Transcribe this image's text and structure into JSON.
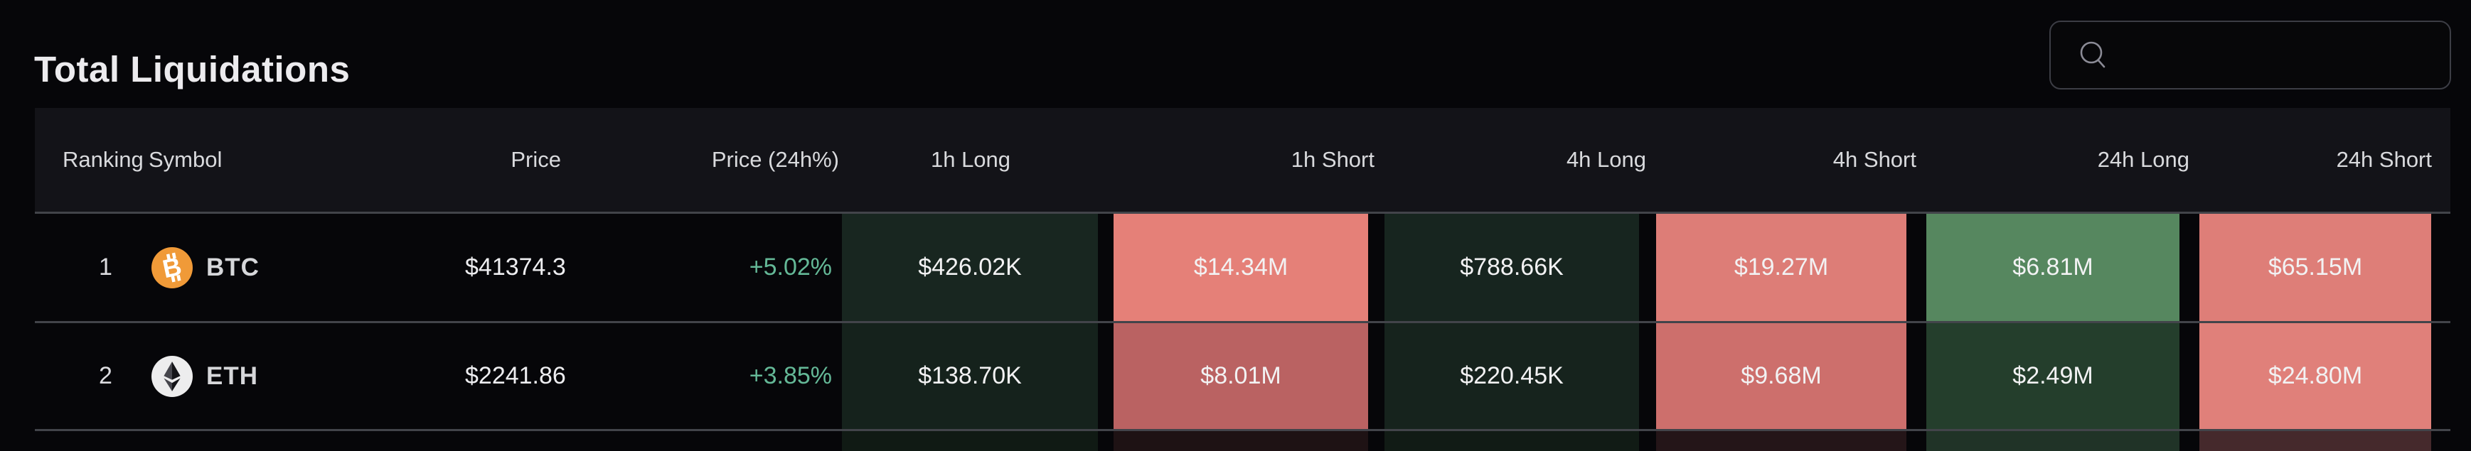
{
  "page": {
    "title": "Total Liquidations"
  },
  "search": {
    "placeholder": "",
    "value": ""
  },
  "colors": {
    "background": "#060609",
    "header_bg": "#131318",
    "separator": "#42444a",
    "positive_change": "#64b897",
    "long_dark": "#182620",
    "short_salmon": "#e58078",
    "btc_orange": "#f09a38"
  },
  "table": {
    "columns": [
      "Ranking",
      "Symbol",
      "Price",
      "Price (24h%)",
      "1h Long",
      "1h Short",
      "4h Long",
      "4h Short",
      "24h Long",
      "24h Short"
    ],
    "rows": [
      {
        "ranking": "1",
        "symbol": "BTC",
        "icon": "btc-icon",
        "price": "$41374.3",
        "change_24h": "+5.02%",
        "cells": [
          {
            "column": "1h Long",
            "value": "$426.02K",
            "bg": "#182620"
          },
          {
            "column": "1h Short",
            "value": "$14.34M",
            "bg": "#e58078"
          },
          {
            "column": "4h Long",
            "value": "$788.66K",
            "bg": "#17251f"
          },
          {
            "column": "4h Short",
            "value": "$19.27M",
            "bg": "#dd7d77"
          },
          {
            "column": "24h Long",
            "value": "$6.81M",
            "bg": "#56875f"
          },
          {
            "column": "24h Short",
            "value": "$65.15M",
            "bg": "#de7e78"
          }
        ]
      },
      {
        "ranking": "2",
        "symbol": "ETH",
        "icon": "eth-icon",
        "price": "$2241.86",
        "change_24h": "+3.85%",
        "cells": [
          {
            "column": "1h Long",
            "value": "$138.70K",
            "bg": "#15221c"
          },
          {
            "column": "1h Short",
            "value": "$8.01M",
            "bg": "#ba6262"
          },
          {
            "column": "4h Long",
            "value": "$220.45K",
            "bg": "#16231d"
          },
          {
            "column": "4h Short",
            "value": "$9.68M",
            "bg": "#cd6f6c"
          },
          {
            "column": "24h Long",
            "value": "$2.49M",
            "bg": "#243e2c"
          },
          {
            "column": "24h Short",
            "value": "$24.80M",
            "bg": "#e0807a"
          }
        ]
      },
      {
        "ranking": "",
        "symbol": "",
        "icon": "",
        "price": "",
        "change_24h": "",
        "partial": true,
        "cells": [
          {
            "column": "1h Long",
            "value": "",
            "bg": "#101a14"
          },
          {
            "column": "1h Short",
            "value": "",
            "bg": "#1e1214"
          },
          {
            "column": "4h Long",
            "value": "",
            "bg": "#111b15"
          },
          {
            "column": "4h Short",
            "value": "",
            "bg": "#241518"
          },
          {
            "column": "24h Long",
            "value": "",
            "bg": "#203327"
          },
          {
            "column": "24h Short",
            "value": "",
            "bg": "#45292c"
          }
        ]
      }
    ]
  }
}
